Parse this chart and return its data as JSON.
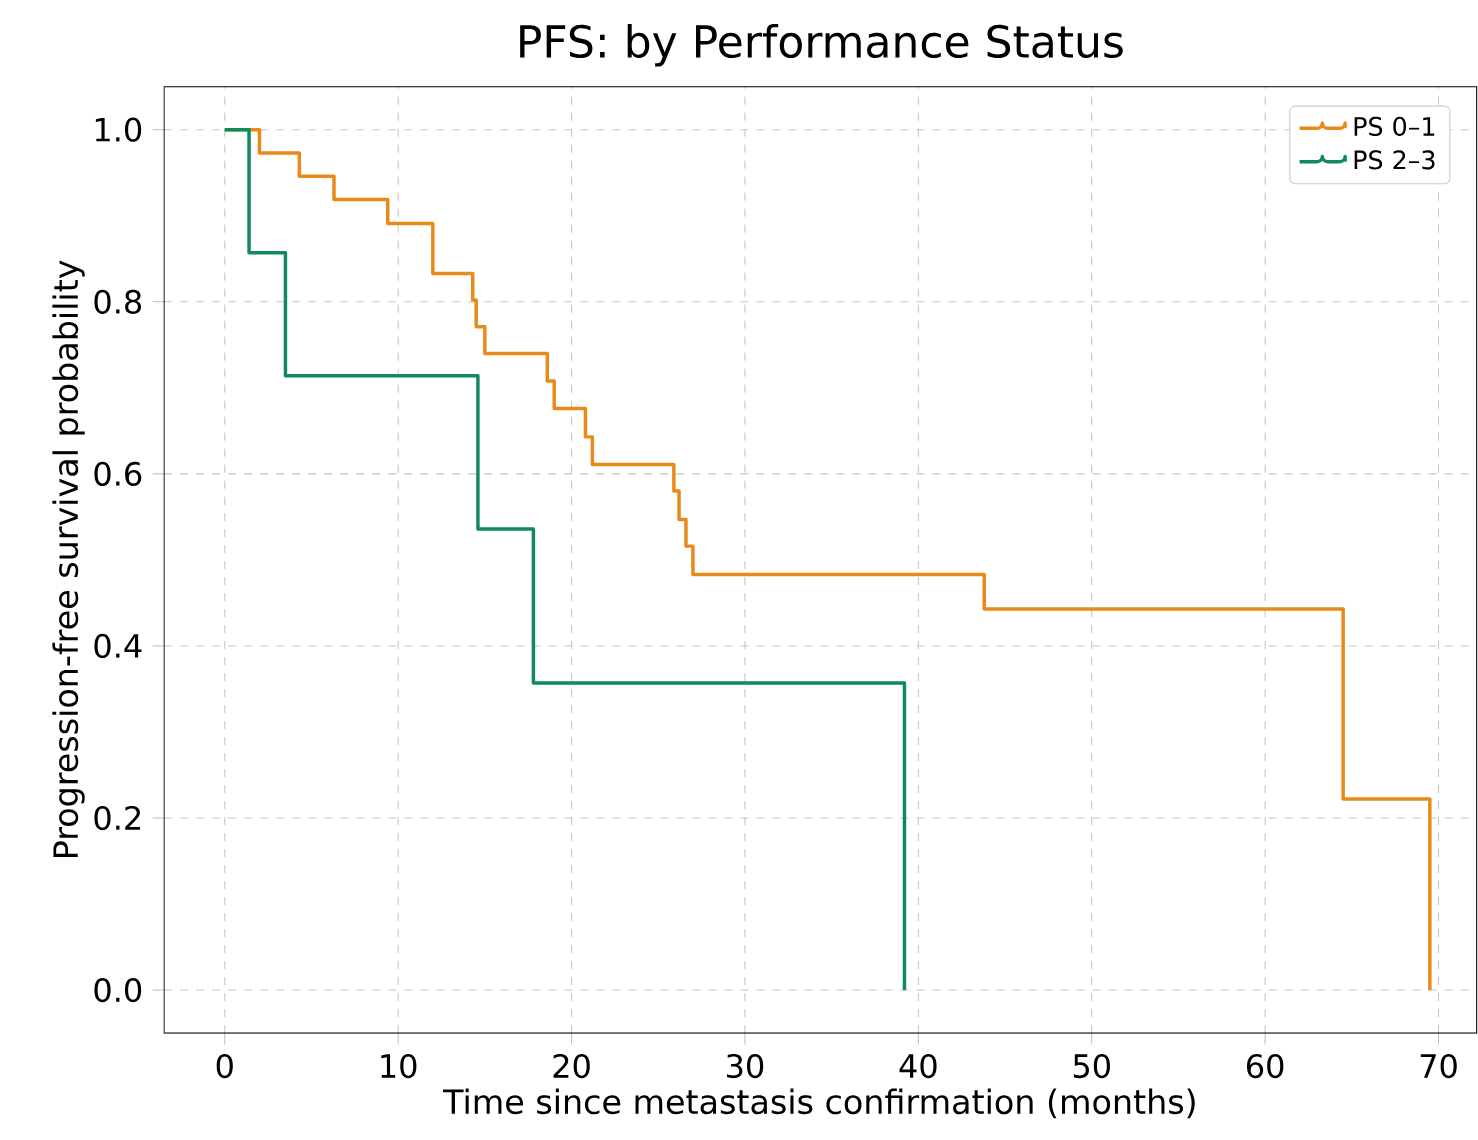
{
  "chart_data": {
    "type": "step",
    "title": "PFS: by Performance Status",
    "xlabel": "Time since metastasis confirmation (months)",
    "ylabel": "Progression-free survival probability",
    "series": [
      {
        "name": "PS 0–1",
        "color": "#e8891a",
        "x": [
          0,
          2.0,
          4.3,
          6.3,
          9.4,
          12.0,
          14.3,
          14.5,
          15.0,
          18.6,
          19.0,
          20.8,
          21.2,
          25.9,
          26.2,
          26.6,
          27.0,
          43.8,
          64.5,
          69.5
        ],
        "values": [
          1.0,
          0.973,
          0.946,
          0.919,
          0.891,
          0.833,
          0.802,
          0.771,
          0.74,
          0.708,
          0.676,
          0.643,
          0.611,
          0.58,
          0.547,
          0.516,
          0.483,
          0.443,
          0.222,
          0.0
        ]
      },
      {
        "name": "PS 2–3",
        "color": "#0f8a5f",
        "x": [
          0,
          1.4,
          3.5,
          14.6,
          17.8,
          39.2
        ],
        "values": [
          1.0,
          0.857,
          0.714,
          0.536,
          0.357,
          0.0
        ]
      }
    ],
    "xlim": [
      -3.5,
      72.2
    ],
    "ylim": [
      -0.05,
      1.05
    ],
    "xticks": [
      0,
      10,
      20,
      30,
      40,
      50,
      60,
      70
    ],
    "yticks": [
      {
        "value": 0,
        "label": "0.0"
      },
      {
        "value": 0.2,
        "label": "0.2"
      },
      {
        "value": 0.4,
        "label": "0.4"
      },
      {
        "value": 0.6,
        "label": "0.6"
      },
      {
        "value": 0.8,
        "label": "0.8"
      },
      {
        "value": 1,
        "label": "1.0"
      }
    ],
    "grid": true,
    "legend": "top right",
    "line_style": "solid",
    "marker": "none"
  }
}
